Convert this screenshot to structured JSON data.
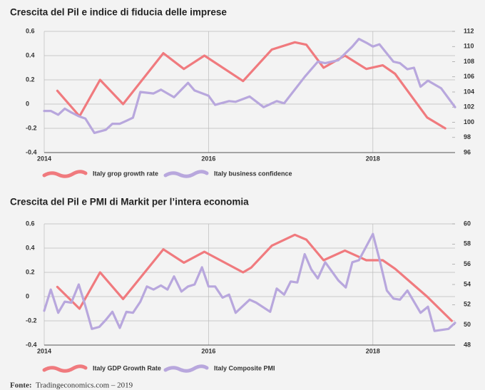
{
  "chart_data": [
    {
      "type": "line",
      "title": "Crescita del Pil e indice di fiducia delle imprese",
      "xlim": [
        2014,
        2019
      ],
      "xticks": [
        2014,
        2016,
        2018
      ],
      "ylim": [
        -0.4,
        0.6
      ],
      "yticks": [
        0.6,
        0.4,
        0.2,
        0,
        -0.2,
        -0.4
      ],
      "y2lim": [
        96,
        112
      ],
      "y2ticks": [
        112,
        110,
        108,
        106,
        104,
        102,
        100,
        98,
        96
      ],
      "grid": true,
      "series": [
        {
          "name": "Italy grop growth rate",
          "color": "#f07a7e",
          "x": [
            2014.16,
            2014.43,
            2014.68,
            2014.96,
            2015.45,
            2015.7,
            2015.95,
            2016.42,
            2016.77,
            2017.05,
            2017.19,
            2017.4,
            2017.66,
            2017.92,
            2018.12,
            2018.27,
            2018.66,
            2018.88
          ],
          "values": [
            0.11,
            -0.1,
            0.2,
            0.0,
            0.42,
            0.29,
            0.4,
            0.19,
            0.45,
            0.51,
            0.49,
            0.3,
            0.4,
            0.29,
            0.32,
            0.25,
            -0.11,
            -0.2
          ]
        },
        {
          "name": "Italy business confidence",
          "color": "#b8a7dd",
          "axis": "y2",
          "x": [
            2014.0,
            2014.08,
            2014.17,
            2014.25,
            2014.33,
            2014.42,
            2014.5,
            2014.61,
            2014.75,
            2014.83,
            2014.92,
            2015.0,
            2015.08,
            2015.17,
            2015.33,
            2015.42,
            2015.58,
            2015.75,
            2015.83,
            2016.0,
            2016.08,
            2016.25,
            2016.33,
            2016.5,
            2016.67,
            2016.83,
            2016.92,
            2017.17,
            2017.33,
            2017.42,
            2017.58,
            2017.75,
            2017.83,
            2017.92,
            2018.0,
            2018.08,
            2018.25,
            2018.33,
            2018.42,
            2018.5,
            2018.58,
            2018.67,
            2018.83,
            2019.0
          ],
          "values": [
            101.5,
            101.5,
            101,
            101.8,
            101.3,
            100.8,
            100.5,
            98.6,
            99,
            99.8,
            99.8,
            100.2,
            100.6,
            104,
            103.8,
            104.3,
            103.3,
            105.2,
            104.2,
            103.5,
            102.3,
            102.8,
            102.7,
            103.4,
            102,
            102.8,
            102.5,
            106,
            108,
            107.8,
            108.2,
            110,
            111,
            110.5,
            110,
            110.3,
            108,
            107.8,
            107,
            107.2,
            104.7,
            105.5,
            104.5,
            102
          ]
        }
      ]
    },
    {
      "type": "line",
      "title": "Crescita del Pil e PMI di Markit per l’intera economia",
      "xlim": [
        2014,
        2019
      ],
      "xticks": [
        2014,
        2016,
        2018
      ],
      "ylim": [
        -0.4,
        0.6
      ],
      "yticks": [
        0.6,
        0.4,
        0.2,
        0,
        -0.2,
        -0.4
      ],
      "y2lim": [
        48,
        60
      ],
      "y2ticks": [
        60,
        58,
        56,
        54,
        52,
        50,
        48
      ],
      "grid": true,
      "series": [
        {
          "name": "Italy GDP Growth Rate",
          "color": "#f07a7e",
          "x": [
            2014.16,
            2014.43,
            2014.68,
            2014.96,
            2015.45,
            2015.7,
            2015.95,
            2016.42,
            2016.52,
            2016.77,
            2017.05,
            2017.19,
            2017.4,
            2017.66,
            2017.92,
            2018.12,
            2018.27,
            2018.66,
            2018.96
          ],
          "values": [
            0.08,
            -0.1,
            0.2,
            -0.02,
            0.39,
            0.28,
            0.37,
            0.2,
            0.24,
            0.42,
            0.51,
            0.47,
            0.3,
            0.38,
            0.3,
            0.3,
            0.23,
            0.0,
            -0.2
          ]
        },
        {
          "name": "Italy Composite PMI",
          "color": "#b8a7dd",
          "axis": "y2",
          "x": [
            2014.0,
            2014.08,
            2014.17,
            2014.25,
            2014.33,
            2014.42,
            2014.5,
            2014.58,
            2014.67,
            2014.75,
            2014.83,
            2014.92,
            2015.0,
            2015.08,
            2015.17,
            2015.25,
            2015.33,
            2015.42,
            2015.5,
            2015.58,
            2015.67,
            2015.75,
            2015.83,
            2015.92,
            2016.0,
            2016.08,
            2016.17,
            2016.25,
            2016.33,
            2016.5,
            2016.58,
            2016.75,
            2016.83,
            2016.92,
            2017.0,
            2017.08,
            2017.17,
            2017.25,
            2017.33,
            2017.42,
            2017.58,
            2017.67,
            2017.75,
            2017.83,
            2018.0,
            2018.08,
            2018.17,
            2018.25,
            2018.33,
            2018.42,
            2018.5,
            2018.58,
            2018.67,
            2018.75,
            2018.92,
            2019.0
          ],
          "values": [
            51.4,
            53.5,
            51.2,
            52.3,
            52.2,
            54,
            51.9,
            49.6,
            49.8,
            50.5,
            51.3,
            49.7,
            51.3,
            51.2,
            52.3,
            53.8,
            53.5,
            53.9,
            53.5,
            54.8,
            53.3,
            53.8,
            54,
            55.7,
            53.8,
            53.8,
            52.7,
            53,
            51.2,
            52.5,
            52.2,
            51.3,
            53.6,
            53,
            54.3,
            54.2,
            57,
            55.5,
            54.6,
            56.2,
            54.4,
            53.7,
            56.2,
            56.4,
            59,
            56.5,
            53.4,
            52.6,
            52.5,
            53.4,
            52.3,
            51.2,
            51.8,
            49.4,
            49.6,
            50.2
          ]
        }
      ]
    }
  ],
  "source_label": "Fonte:",
  "source": "Tradingeconomics.com – 2019"
}
